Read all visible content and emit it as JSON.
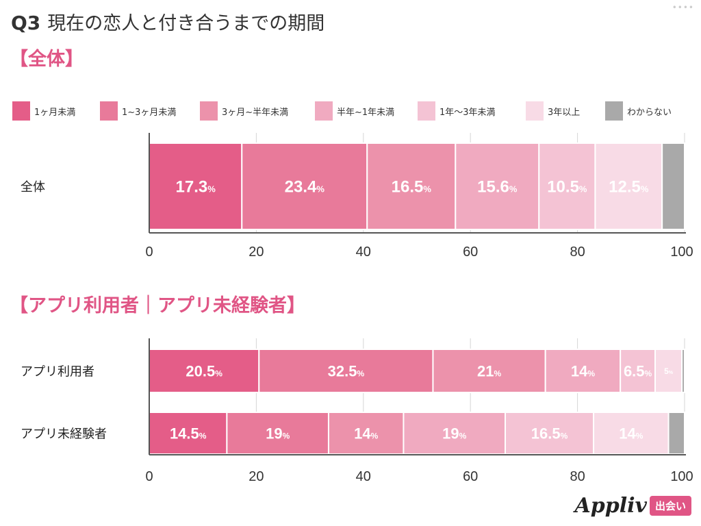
{
  "header": {
    "q_number": "Q3",
    "title": "現在の恋人と付き合うまでの期間",
    "section_overall": "【全体】",
    "section_compare": "【アプリ利用者｜アプリ未経験者】",
    "menu_dots": "••••"
  },
  "brand": {
    "name": "Appliv",
    "tag": "出会い"
  },
  "legend": [
    {
      "label": "1ヶ月未満",
      "color": "#e45d88"
    },
    {
      "label": "1~3ヶ月未満",
      "color": "#e87a9a"
    },
    {
      "label": "3ヶ月~半年未満",
      "color": "#ec92ab"
    },
    {
      "label": "半年~1年未満",
      "color": "#f0aac0"
    },
    {
      "label": "1年〜3年未満",
      "color": "#f4c3d4"
    },
    {
      "label": "3年以上",
      "color": "#f8dbe6"
    },
    {
      "label": "わからない",
      "color": "#a9a9a9"
    }
  ],
  "chart_data": [
    {
      "type": "bar",
      "orientation": "horizontal-stacked",
      "categories": [
        "全体"
      ],
      "series": [
        {
          "name": "1ヶ月未満",
          "values": [
            17.3
          ]
        },
        {
          "name": "1~3ヶ月未満",
          "values": [
            23.4
          ]
        },
        {
          "name": "3ヶ月~半年未満",
          "values": [
            16.5
          ]
        },
        {
          "name": "半年~1年未満",
          "values": [
            15.6
          ]
        },
        {
          "name": "1年〜3年未満",
          "values": [
            10.5
          ]
        },
        {
          "name": "3年以上",
          "values": [
            12.5
          ]
        },
        {
          "name": "わからない",
          "values": [
            4.2
          ]
        }
      ],
      "data_labels": [
        [
          "17.3",
          "23.4",
          "16.5",
          "15.6",
          "10.5",
          "12.5",
          ""
        ]
      ],
      "xlim": [
        0,
        100
      ],
      "xticks": [
        "0",
        "20",
        "40",
        "60",
        "80",
        "100"
      ]
    },
    {
      "type": "bar",
      "orientation": "horizontal-stacked",
      "categories": [
        "アプリ利用者",
        "アプリ未経験者"
      ],
      "series": [
        {
          "name": "1ヶ月未満",
          "values": [
            20.5,
            14.5
          ]
        },
        {
          "name": "1~3ヶ月未満",
          "values": [
            32.5,
            19
          ]
        },
        {
          "name": "3ヶ月~半年未満",
          "values": [
            21,
            14
          ]
        },
        {
          "name": "半年~1年未満",
          "values": [
            14,
            19
          ]
        },
        {
          "name": "1年〜3年未満",
          "values": [
            6.5,
            16.5
          ]
        },
        {
          "name": "3年以上",
          "values": [
            5,
            14
          ]
        },
        {
          "name": "わからない",
          "values": [
            0.5,
            3
          ]
        }
      ],
      "data_labels": [
        [
          "20.5",
          "32.5",
          "21",
          "14",
          "6.5",
          "5",
          ""
        ],
        [
          "14.5",
          "19",
          "14",
          "19",
          "16.5",
          "14",
          ""
        ]
      ],
      "xlim": [
        0,
        100
      ],
      "xticks": [
        "0",
        "20",
        "40",
        "60",
        "80",
        "100"
      ]
    }
  ],
  "percent_sign": "%"
}
